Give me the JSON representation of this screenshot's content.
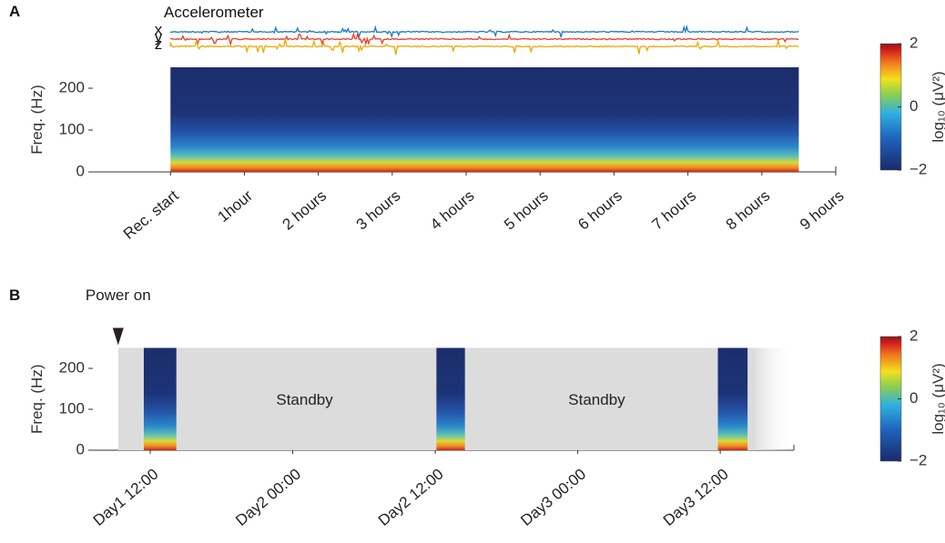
{
  "chart_data": [
    {
      "type": "spectrogram",
      "panel_label": "A",
      "ylabel": "Freq. (Hz)",
      "ylim": [
        0,
        250
      ],
      "yticks": [
        0,
        100,
        200
      ],
      "xlim": [
        -1.05,
        9
      ],
      "xticks": [
        {
          "value": 0,
          "label": "Rec. start"
        },
        {
          "value": 1,
          "label": "1hour"
        },
        {
          "value": 2,
          "label": "2 hours"
        },
        {
          "value": 3,
          "label": "3 hours"
        },
        {
          "value": 4,
          "label": "4 hours"
        },
        {
          "value": 5,
          "label": "5 hours"
        },
        {
          "value": 6,
          "label": "6 hours"
        },
        {
          "value": 7,
          "label": "7 hours"
        },
        {
          "value": 8,
          "label": "8 hours"
        },
        {
          "value": 9,
          "label": "9 hours"
        }
      ],
      "recordings": [
        [
          0,
          8.5
        ]
      ],
      "accelerometer": {
        "title": "Accelerometer",
        "series": [
          {
            "name": "x",
            "color": "#1f78c8"
          },
          {
            "name": "y",
            "color": "#e4402a"
          },
          {
            "name": "z",
            "color": "#f0a800"
          }
        ]
      },
      "colorbar": {
        "label": "log₁₀ (μV²)",
        "clim": [
          -2,
          2
        ],
        "ticks": [
          2,
          0,
          {
            "value": -2,
            "label": "−2"
          }
        ]
      }
    },
    {
      "type": "spectrogram",
      "panel_label": "B",
      "ylabel": "Freq. (Hz)",
      "ylim": [
        0,
        250
      ],
      "yticks": [
        0,
        100,
        200
      ],
      "xlim": [
        7.17,
        66.2
      ],
      "xticks": [
        {
          "value": 12,
          "label": "Day1  12:00"
        },
        {
          "value": 24,
          "label": "Day2  00:00"
        },
        {
          "value": 36,
          "label": "Day2  12:00"
        },
        {
          "value": 48,
          "label": "Day3  00:00"
        },
        {
          "value": 60,
          "label": "Day3  12:00"
        }
      ],
      "recordings": [
        [
          11.46,
          14.2
        ],
        [
          36.1,
          38.5
        ],
        [
          59.8,
          62.3
        ]
      ],
      "power_on": {
        "label": "Power on",
        "x": 9.3
      },
      "annotations": [
        {
          "text": "Standby",
          "x": 25
        },
        {
          "text": "Standby",
          "x": 49.6
        }
      ],
      "colorbar": {
        "label": "log₁₀ (μV²)",
        "clim": [
          -2,
          2
        ],
        "ticks": [
          2,
          0,
          {
            "value": -2,
            "label": "−2"
          }
        ]
      }
    }
  ]
}
